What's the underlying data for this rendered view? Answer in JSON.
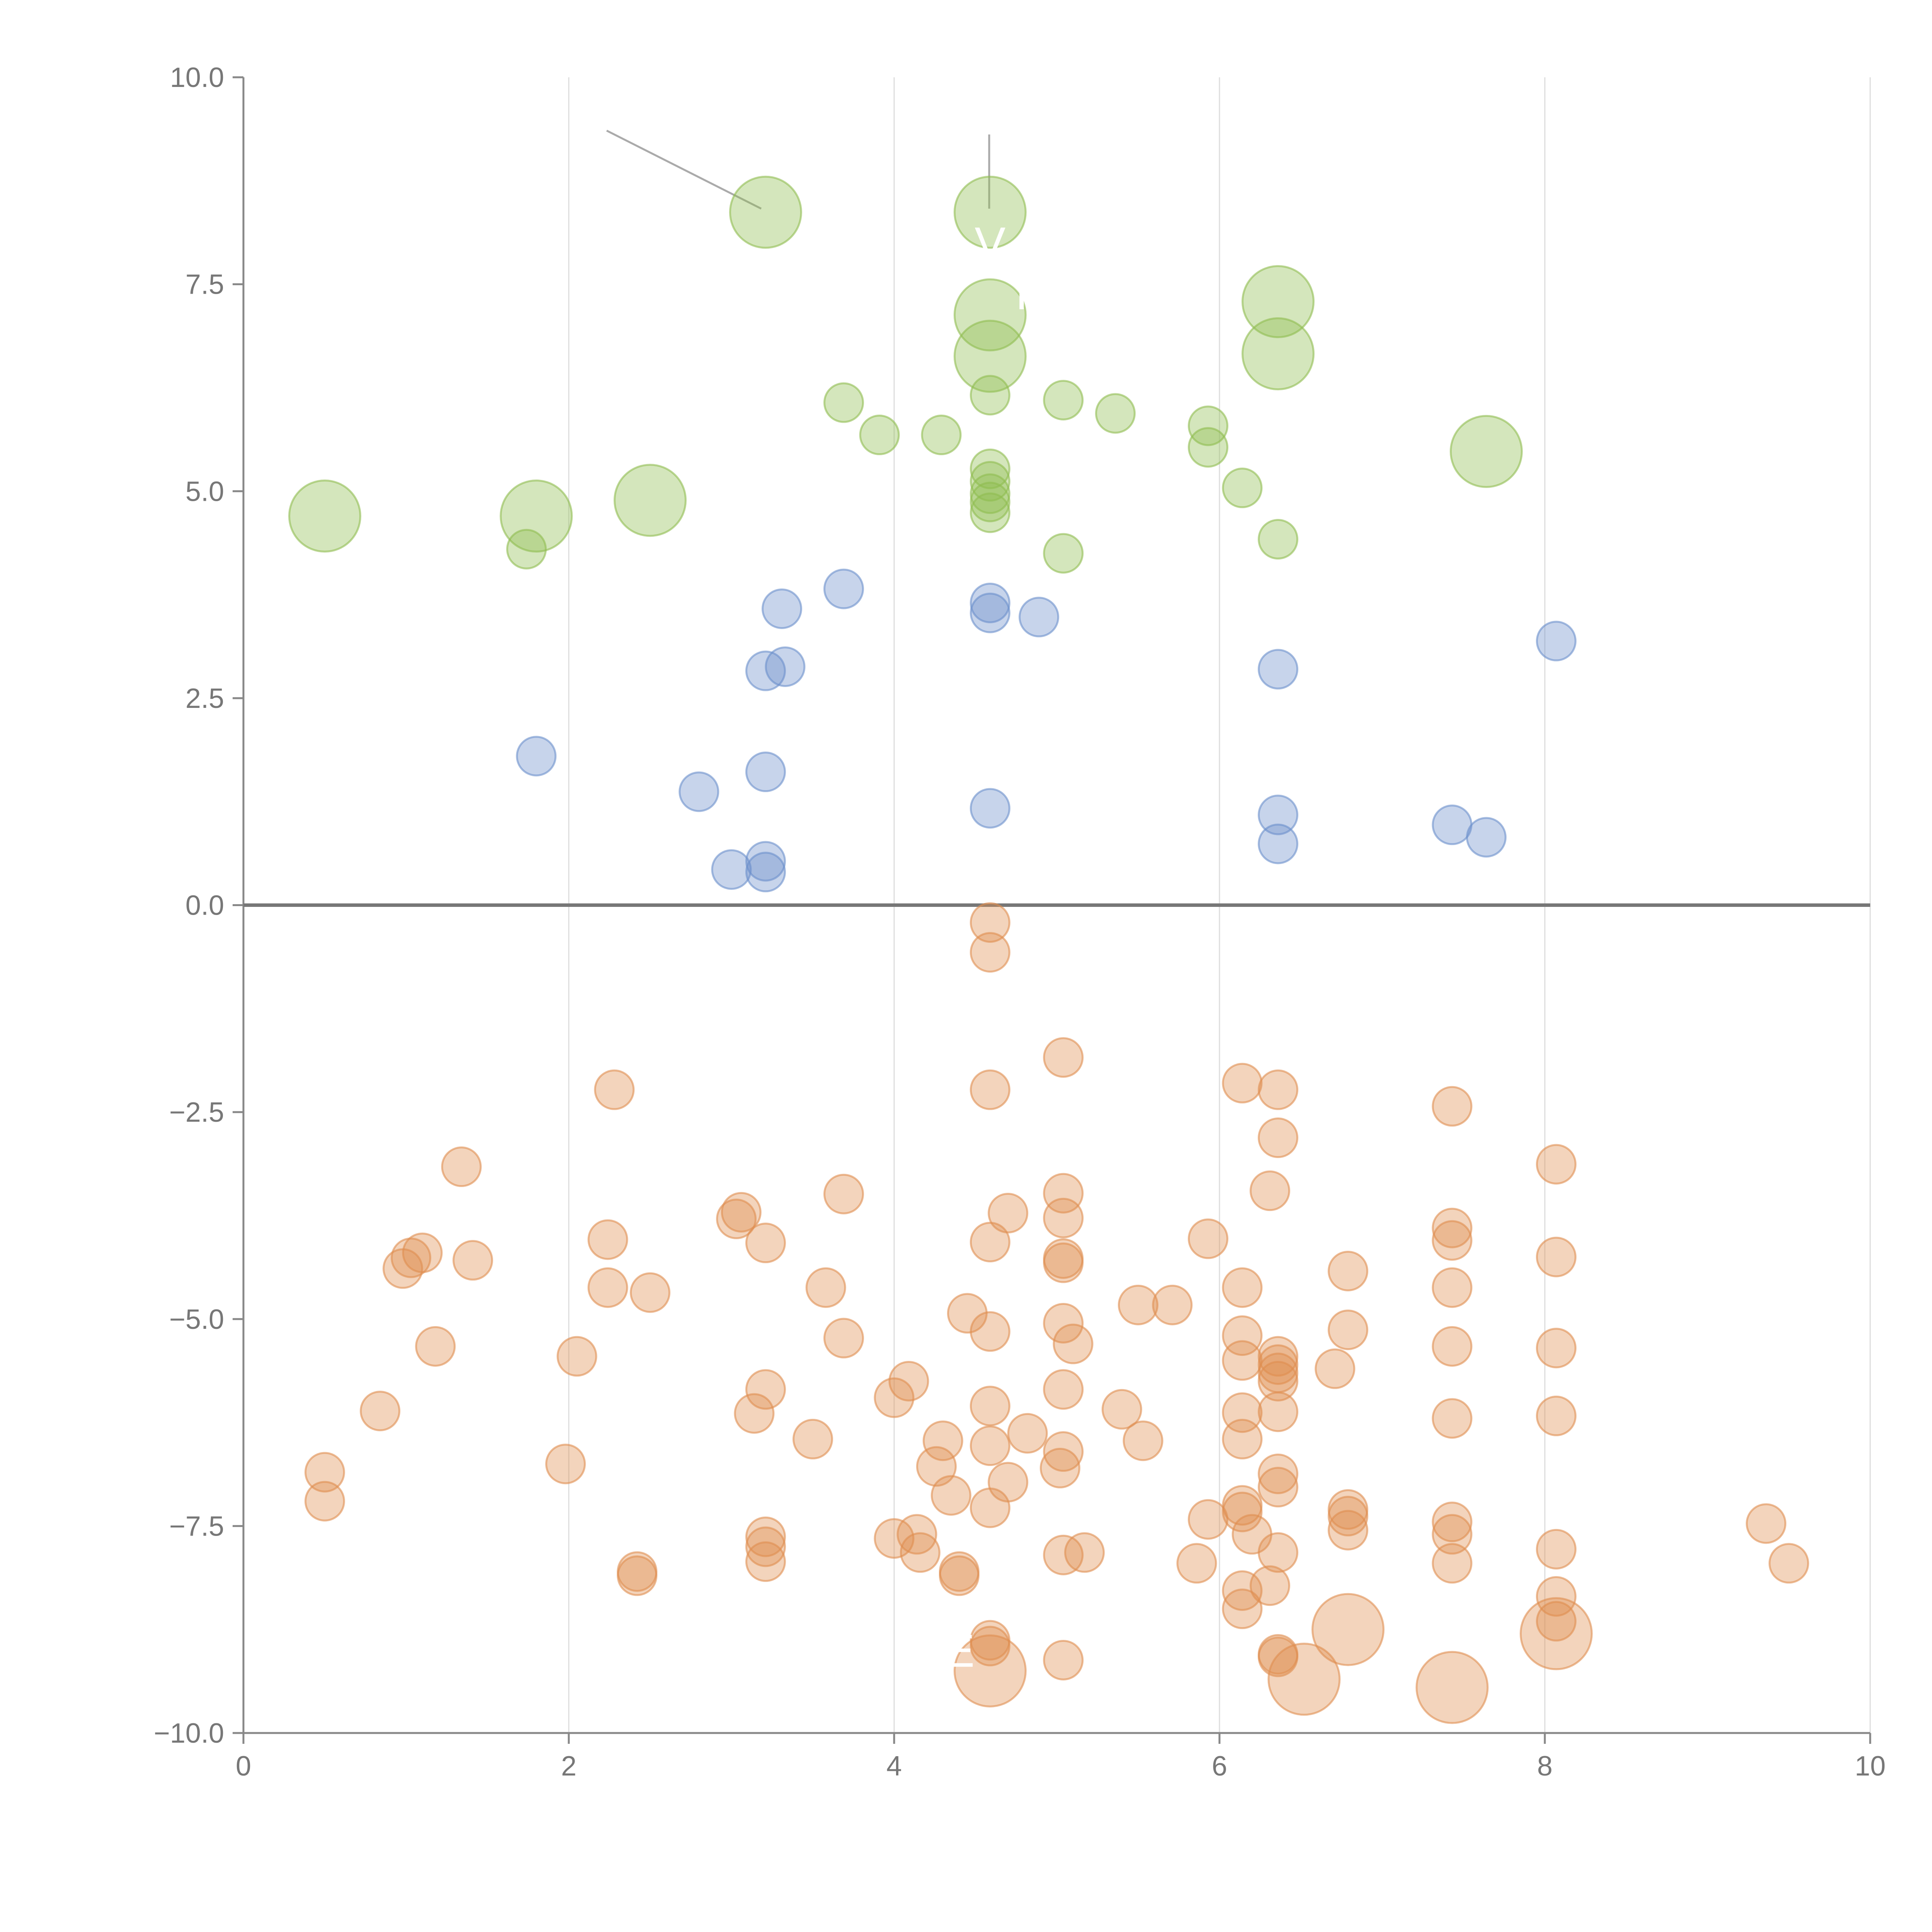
{
  "chart_data": {
    "type": "scatter",
    "title": "",
    "xlabel": "",
    "ylabel": "",
    "xlim": [
      0,
      10
    ],
    "ylim": [
      -10,
      10
    ],
    "xticks": [
      0,
      2,
      4,
      6,
      8,
      10
    ],
    "xtick_labels": [
      "0",
      "2",
      "4",
      "6",
      "8",
      "10"
    ],
    "yticks": [
      -10,
      -7.5,
      -5,
      -2.5,
      0,
      2.5,
      5,
      7.5,
      10
    ],
    "ytick_labels": [
      "−10.0",
      "−7.5",
      "−5.0",
      "−2.5",
      "0.0",
      "2.5",
      "5.0",
      "7.5",
      "10.0"
    ],
    "grid": "vertical lines at x ticks",
    "zero_line": 0,
    "series": [
      {
        "name": "green",
        "color": "#8fbc50",
        "points": [
          {
            "x": 3.21,
            "y": 8.37,
            "s": "large"
          },
          {
            "x": 4.59,
            "y": 8.37,
            "s": "large"
          },
          {
            "x": 4.59,
            "y": 7.13,
            "s": "large"
          },
          {
            "x": 4.59,
            "y": 6.63,
            "s": "large"
          },
          {
            "x": 6.36,
            "y": 7.29,
            "s": "large"
          },
          {
            "x": 6.36,
            "y": 6.66,
            "s": "large"
          },
          {
            "x": 7.64,
            "y": 5.48,
            "s": "large"
          },
          {
            "x": 0.5,
            "y": 4.7,
            "s": "large"
          },
          {
            "x": 1.8,
            "y": 4.7,
            "s": "large"
          },
          {
            "x": 2.5,
            "y": 4.89,
            "s": "large"
          },
          {
            "x": 3.69,
            "y": 6.07,
            "s": "small"
          },
          {
            "x": 3.91,
            "y": 5.68,
            "s": "small"
          },
          {
            "x": 4.29,
            "y": 5.68,
            "s": "small"
          },
          {
            "x": 4.59,
            "y": 6.16,
            "s": "small"
          },
          {
            "x": 5.04,
            "y": 6.1,
            "s": "small"
          },
          {
            "x": 5.36,
            "y": 5.94,
            "s": "small"
          },
          {
            "x": 5.93,
            "y": 5.79,
            "s": "small"
          },
          {
            "x": 5.93,
            "y": 5.53,
            "s": "small"
          },
          {
            "x": 6.14,
            "y": 5.04,
            "s": "small"
          },
          {
            "x": 6.36,
            "y": 4.42,
            "s": "small"
          },
          {
            "x": 5.04,
            "y": 4.25,
            "s": "small"
          },
          {
            "x": 4.59,
            "y": 5.27,
            "s": "small"
          },
          {
            "x": 4.59,
            "y": 5.12,
            "s": "small"
          },
          {
            "x": 4.59,
            "y": 4.97,
            "s": "small"
          },
          {
            "x": 4.59,
            "y": 4.87,
            "s": "small"
          },
          {
            "x": 4.59,
            "y": 4.74,
            "s": "small"
          },
          {
            "x": 1.74,
            "y": 4.3,
            "s": "small"
          }
        ]
      },
      {
        "name": "blue",
        "color": "#6b8fcb",
        "points": [
          {
            "x": 3.69,
            "y": 3.82
          },
          {
            "x": 3.31,
            "y": 3.58
          },
          {
            "x": 4.59,
            "y": 3.65
          },
          {
            "x": 4.59,
            "y": 3.53
          },
          {
            "x": 4.89,
            "y": 3.48
          },
          {
            "x": 3.21,
            "y": 2.83
          },
          {
            "x": 3.33,
            "y": 2.88
          },
          {
            "x": 6.36,
            "y": 2.85
          },
          {
            "x": 8.07,
            "y": 3.19
          },
          {
            "x": 1.8,
            "y": 1.8
          },
          {
            "x": 2.8,
            "y": 1.37
          },
          {
            "x": 3.21,
            "y": 1.61
          },
          {
            "x": 4.59,
            "y": 1.17
          },
          {
            "x": 6.36,
            "y": 1.09
          },
          {
            "x": 6.36,
            "y": 0.74
          },
          {
            "x": 7.43,
            "y": 0.97
          },
          {
            "x": 7.64,
            "y": 0.82
          },
          {
            "x": 3.0,
            "y": 0.43
          },
          {
            "x": 3.21,
            "y": 0.53
          },
          {
            "x": 3.21,
            "y": 0.4
          }
        ]
      },
      {
        "name": "orange",
        "color": "#e08d50",
        "points": [
          {
            "x": 4.59,
            "y": -0.21
          },
          {
            "x": 4.59,
            "y": -0.57
          },
          {
            "x": 5.04,
            "y": -1.84
          },
          {
            "x": 2.28,
            "y": -2.23
          },
          {
            "x": 4.59,
            "y": -2.23
          },
          {
            "x": 6.14,
            "y": -2.15
          },
          {
            "x": 6.36,
            "y": -2.23
          },
          {
            "x": 7.43,
            "y": -2.43
          },
          {
            "x": 6.36,
            "y": -2.81
          },
          {
            "x": 1.34,
            "y": -3.16
          },
          {
            "x": 8.07,
            "y": -3.13
          },
          {
            "x": 3.69,
            "y": -3.49
          },
          {
            "x": 6.31,
            "y": -3.45
          },
          {
            "x": 5.04,
            "y": -3.48
          },
          {
            "x": 3.06,
            "y": -3.71
          },
          {
            "x": 3.03,
            "y": -3.79
          },
          {
            "x": 4.7,
            "y": -3.72
          },
          {
            "x": 5.04,
            "y": -3.78
          },
          {
            "x": 7.43,
            "y": -3.9
          },
          {
            "x": 7.43,
            "y": -4.05
          },
          {
            "x": 2.24,
            "y": -4.04
          },
          {
            "x": 3.21,
            "y": -4.08
          },
          {
            "x": 4.59,
            "y": -4.07
          },
          {
            "x": 5.93,
            "y": -4.03
          },
          {
            "x": 1.1,
            "y": -4.2
          },
          {
            "x": 1.03,
            "y": -4.26
          },
          {
            "x": 0.98,
            "y": -4.39
          },
          {
            "x": 1.41,
            "y": -4.29
          },
          {
            "x": 5.04,
            "y": -4.27
          },
          {
            "x": 5.04,
            "y": -4.32
          },
          {
            "x": 8.07,
            "y": -4.25
          },
          {
            "x": 6.79,
            "y": -4.42
          },
          {
            "x": 2.24,
            "y": -4.62
          },
          {
            "x": 2.5,
            "y": -4.68
          },
          {
            "x": 3.58,
            "y": -4.62
          },
          {
            "x": 6.14,
            "y": -4.62
          },
          {
            "x": 7.43,
            "y": -4.62
          },
          {
            "x": 4.45,
            "y": -4.93
          },
          {
            "x": 5.5,
            "y": -4.83
          },
          {
            "x": 5.71,
            "y": -4.83
          },
          {
            "x": 5.04,
            "y": -5.05
          },
          {
            "x": 4.59,
            "y": -5.15
          },
          {
            "x": 6.14,
            "y": -5.2
          },
          {
            "x": 6.79,
            "y": -5.13
          },
          {
            "x": 3.69,
            "y": -5.23
          },
          {
            "x": 5.1,
            "y": -5.3
          },
          {
            "x": 1.18,
            "y": -5.33
          },
          {
            "x": 7.43,
            "y": -5.33
          },
          {
            "x": 8.07,
            "y": -5.35
          },
          {
            "x": 2.05,
            "y": -5.45
          },
          {
            "x": 6.14,
            "y": -5.5
          },
          {
            "x": 6.36,
            "y": -5.45
          },
          {
            "x": 6.36,
            "y": -5.55
          },
          {
            "x": 6.36,
            "y": -5.65
          },
          {
            "x": 6.36,
            "y": -5.75
          },
          {
            "x": 6.71,
            "y": -5.6
          },
          {
            "x": 3.21,
            "y": -5.85
          },
          {
            "x": 4.09,
            "y": -5.75
          },
          {
            "x": 4.0,
            "y": -5.95
          },
          {
            "x": 5.04,
            "y": -5.85
          },
          {
            "x": 3.14,
            "y": -6.14
          },
          {
            "x": 4.59,
            "y": -6.05
          },
          {
            "x": 5.4,
            "y": -6.09
          },
          {
            "x": 6.14,
            "y": -6.13
          },
          {
            "x": 6.36,
            "y": -6.12
          },
          {
            "x": 7.43,
            "y": -6.2
          },
          {
            "x": 8.07,
            "y": -6.17
          },
          {
            "x": 0.84,
            "y": -6.11
          },
          {
            "x": 3.5,
            "y": -6.45
          },
          {
            "x": 4.3,
            "y": -6.47
          },
          {
            "x": 4.82,
            "y": -6.38
          },
          {
            "x": 5.53,
            "y": -6.47
          },
          {
            "x": 6.14,
            "y": -6.45
          },
          {
            "x": 4.59,
            "y": -6.53
          },
          {
            "x": 5.04,
            "y": -6.6
          },
          {
            "x": 1.98,
            "y": -6.75
          },
          {
            "x": 4.26,
            "y": -6.78
          },
          {
            "x": 5.02,
            "y": -6.8
          },
          {
            "x": 0.5,
            "y": -6.85
          },
          {
            "x": 6.36,
            "y": -6.87
          },
          {
            "x": 4.7,
            "y": -6.97
          },
          {
            "x": 6.36,
            "y": -7.03
          },
          {
            "x": 4.35,
            "y": -7.13
          },
          {
            "x": 0.5,
            "y": -7.2
          },
          {
            "x": 4.59,
            "y": -7.28
          },
          {
            "x": 6.14,
            "y": -7.25
          },
          {
            "x": 6.14,
            "y": -7.33
          },
          {
            "x": 6.79,
            "y": -7.3
          },
          {
            "x": 6.79,
            "y": -7.38
          },
          {
            "x": 5.93,
            "y": -7.42
          },
          {
            "x": 7.43,
            "y": -7.45
          },
          {
            "x": 9.36,
            "y": -7.47
          },
          {
            "x": 6.79,
            "y": -7.55
          },
          {
            "x": 6.2,
            "y": -7.6
          },
          {
            "x": 7.43,
            "y": -7.6
          },
          {
            "x": 3.21,
            "y": -7.63
          },
          {
            "x": 4.14,
            "y": -7.6
          },
          {
            "x": 4.0,
            "y": -7.65
          },
          {
            "x": 3.21,
            "y": -7.75
          },
          {
            "x": 4.16,
            "y": -7.82
          },
          {
            "x": 6.36,
            "y": -7.82
          },
          {
            "x": 8.07,
            "y": -7.78
          },
          {
            "x": 5.04,
            "y": -7.85
          },
          {
            "x": 5.17,
            "y": -7.82
          },
          {
            "x": 3.21,
            "y": -7.93
          },
          {
            "x": 5.86,
            "y": -7.95
          },
          {
            "x": 7.43,
            "y": -7.95
          },
          {
            "x": 9.5,
            "y": -7.95
          },
          {
            "x": 2.42,
            "y": -8.05
          },
          {
            "x": 2.42,
            "y": -8.1
          },
          {
            "x": 4.4,
            "y": -8.05
          },
          {
            "x": 4.4,
            "y": -8.1
          },
          {
            "x": 6.14,
            "y": -8.28
          },
          {
            "x": 6.31,
            "y": -8.22
          },
          {
            "x": 8.07,
            "y": -8.35
          },
          {
            "x": 6.14,
            "y": -8.5
          },
          {
            "x": 8.07,
            "y": -8.65
          },
          {
            "x": 4.59,
            "y": -8.88
          },
          {
            "x": 4.59,
            "y": -8.95
          },
          {
            "x": 6.36,
            "y": -9.05
          },
          {
            "x": 6.36,
            "y": -9.08
          },
          {
            "x": 5.04,
            "y": -9.12
          },
          {
            "x": 6.79,
            "y": -8.75,
            "s": "large"
          },
          {
            "x": 8.07,
            "y": -8.8,
            "s": "large"
          },
          {
            "x": 4.59,
            "y": -9.25,
            "s": "large"
          },
          {
            "x": 6.52,
            "y": -9.35,
            "s": "large"
          },
          {
            "x": 7.43,
            "y": -9.45,
            "s": "large"
          }
        ]
      }
    ],
    "annotations": [
      {
        "text": "V",
        "x": 4.59,
        "y": 7.8
      },
      {
        "text": "R",
        "x": 4.85,
        "y": 7.2
      },
      {
        "text": "E",
        "x": 4.4,
        "y": -9.2
      }
    ]
  }
}
